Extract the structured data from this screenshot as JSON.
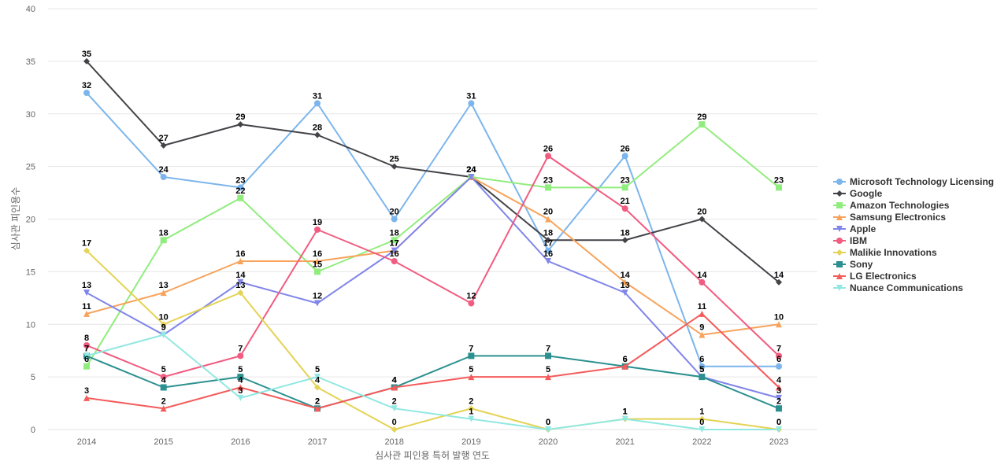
{
  "chart_data": {
    "type": "line",
    "title": "",
    "xlabel": "심사관 피인용 특허 발행 연도",
    "ylabel": "심사관 피인용수",
    "ylim": [
      0,
      40
    ],
    "yticks": [
      0,
      5,
      10,
      15,
      20,
      25,
      30,
      35,
      40
    ],
    "grid": true,
    "legend_position": "right",
    "categories": [
      "2014",
      "2015",
      "2016",
      "2017",
      "2018",
      "2019",
      "2020",
      "2021",
      "2022",
      "2023"
    ],
    "series": [
      {
        "name": "Microsoft Technology Licensing",
        "color": "#7cb5ec",
        "marker": "circle",
        "values": [
          32,
          24,
          23,
          31,
          20,
          31,
          17,
          26,
          6,
          6
        ]
      },
      {
        "name": "Google",
        "color": "#434348",
        "marker": "diamond",
        "values": [
          35,
          27,
          29,
          28,
          25,
          24,
          18,
          18,
          20,
          14
        ]
      },
      {
        "name": "Amazon Technologies",
        "color": "#90ed7d",
        "marker": "square",
        "values": [
          6,
          18,
          22,
          15,
          18,
          24,
          23,
          23,
          29,
          23
        ]
      },
      {
        "name": "Samsung Electronics",
        "color": "#f7a35c",
        "marker": "triangle",
        "values": [
          11,
          13,
          16,
          16,
          17,
          24,
          20,
          14,
          9,
          10
        ]
      },
      {
        "name": "Apple",
        "color": "#8085e9",
        "marker": "triangle-down",
        "values": [
          13,
          9,
          14,
          12,
          17,
          24,
          16,
          13,
          5,
          3
        ]
      },
      {
        "name": "IBM",
        "color": "#f15c80",
        "marker": "circle",
        "values": [
          8,
          5,
          7,
          19,
          16,
          12,
          26,
          21,
          14,
          7
        ]
      },
      {
        "name": "Malikie Innovations",
        "color": "#e4d354",
        "marker": "diamond",
        "values": [
          17,
          10,
          13,
          4,
          0,
          2,
          0,
          1,
          1,
          0
        ]
      },
      {
        "name": "Sony",
        "color": "#2b908f",
        "marker": "square",
        "values": [
          7,
          4,
          5,
          2,
          4,
          7,
          7,
          6,
          5,
          2
        ]
      },
      {
        "name": "LG Electronics",
        "color": "#f45b5b",
        "marker": "triangle",
        "values": [
          3,
          2,
          4,
          2,
          4,
          5,
          5,
          6,
          11,
          4
        ]
      },
      {
        "name": "Nuance Communications",
        "color": "#91e8e1",
        "marker": "triangle-down",
        "values": [
          7,
          9,
          3,
          5,
          2,
          1,
          0,
          1,
          0,
          0
        ]
      }
    ]
  }
}
